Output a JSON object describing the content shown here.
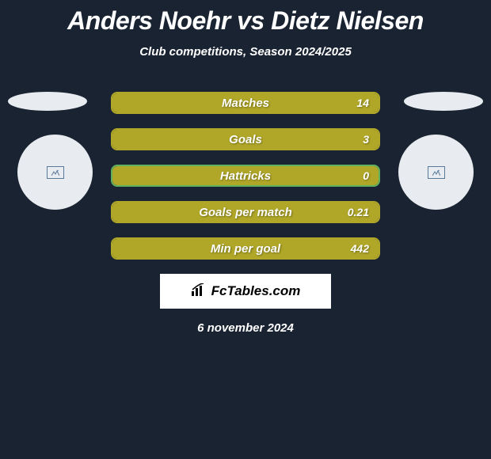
{
  "title": "Anders Noehr vs Dietz Nielsen",
  "subtitle": "Club competitions, Season 2024/2025",
  "date": "6 november 2024",
  "brand": "FcTables.com",
  "colors": {
    "background": "#1a2332",
    "bar_fill": "#b0a729",
    "bar_border_1": "#b0a729",
    "bar_border_empty": "#5fb05f",
    "text": "#ffffff",
    "brand_bg": "#ffffff",
    "ellipse": "#e8ebef"
  },
  "stats": [
    {
      "label": "Matches",
      "value": "14",
      "fill_pct": 100,
      "border": "#b0a729"
    },
    {
      "label": "Goals",
      "value": "3",
      "fill_pct": 100,
      "border": "#b0a729"
    },
    {
      "label": "Hattricks",
      "value": "0",
      "fill_pct": 100,
      "border": "#5fb05f"
    },
    {
      "label": "Goals per match",
      "value": "0.21",
      "fill_pct": 100,
      "border": "#b0a729"
    },
    {
      "label": "Min per goal",
      "value": "442",
      "fill_pct": 100,
      "border": "#b0a729"
    }
  ]
}
